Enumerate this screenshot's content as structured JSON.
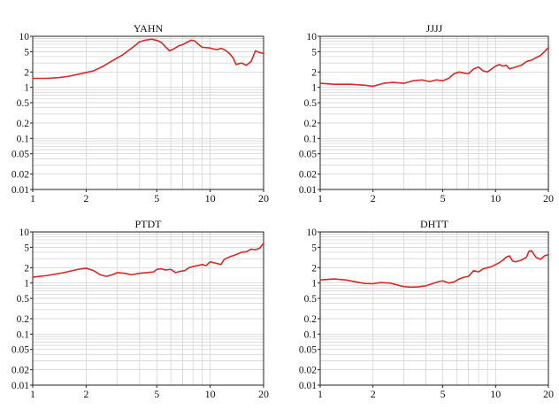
{
  "chart_data": [
    {
      "type": "line",
      "title": "YAHN",
      "xlabel": "",
      "ylabel": "",
      "xscale": "log",
      "yscale": "log",
      "xlim": [
        1,
        20
      ],
      "ylim": [
        0.01,
        10
      ],
      "xticks": [
        1,
        2,
        5,
        10,
        20
      ],
      "xtick_labels": [
        "1",
        "2",
        "5",
        "10",
        "20"
      ],
      "yticks": [
        0.01,
        0.02,
        0.05,
        0.1,
        0.2,
        0.5,
        1,
        2,
        5,
        10
      ],
      "ytick_labels": [
        "0.01",
        "0.02",
        "0.05",
        "0.1",
        "0.2",
        "0.5",
        "1",
        "2",
        "5",
        "10"
      ],
      "grid": true,
      "color": "#d42a2a",
      "x": [
        1.0,
        1.2,
        1.4,
        1.6,
        1.8,
        2.0,
        2.2,
        2.5,
        2.8,
        3.2,
        3.6,
        4.0,
        4.3,
        4.7,
        5.0,
        5.3,
        5.6,
        5.9,
        6.2,
        6.6,
        7.0,
        7.4,
        7.8,
        8.2,
        8.6,
        9.0,
        9.5,
        10.0,
        10.5,
        11.0,
        11.5,
        12.0,
        12.5,
        13.0,
        13.5,
        14.0,
        15.0,
        16.0,
        17.0,
        18.0,
        19.0,
        20.0
      ],
      "y": [
        1.5,
        1.5,
        1.55,
        1.65,
        1.8,
        1.95,
        2.1,
        2.6,
        3.3,
        4.3,
        5.8,
        7.8,
        8.4,
        8.8,
        8.3,
        7.6,
        6.2,
        5.2,
        5.6,
        6.4,
        6.9,
        7.6,
        8.4,
        8.1,
        6.9,
        6.1,
        6.0,
        5.9,
        5.6,
        5.5,
        5.8,
        5.5,
        5.0,
        4.4,
        3.7,
        2.8,
        3.0,
        2.7,
        3.2,
        5.2,
        4.8,
        4.6
      ]
    },
    {
      "type": "line",
      "title": "JJJJ",
      "xlabel": "",
      "ylabel": "",
      "xscale": "log",
      "yscale": "log",
      "xlim": [
        1,
        20
      ],
      "ylim": [
        0.01,
        10
      ],
      "xticks": [
        1,
        2,
        5,
        10,
        20
      ],
      "xtick_labels": [
        "1",
        "2",
        "5",
        "10",
        "20"
      ],
      "yticks": [
        0.01,
        0.02,
        0.05,
        0.1,
        0.2,
        0.5,
        1,
        2,
        5,
        10
      ],
      "ytick_labels": [
        "0.01",
        "0.02",
        "0.05",
        "0.1",
        "0.2",
        "0.5",
        "1",
        "2",
        "5",
        "10"
      ],
      "grid": true,
      "color": "#d42a2a",
      "x": [
        1.0,
        1.2,
        1.5,
        1.8,
        2.0,
        2.3,
        2.6,
        3.0,
        3.4,
        3.8,
        4.2,
        4.6,
        5.0,
        5.4,
        5.8,
        6.2,
        6.6,
        7.0,
        7.5,
        8.0,
        8.5,
        9.0,
        9.5,
        10.0,
        10.5,
        11.0,
        11.5,
        12.0,
        12.5,
        13.0,
        14.0,
        15.0,
        16.0,
        17.0,
        18.0,
        19.0,
        20.0
      ],
      "y": [
        1.2,
        1.15,
        1.15,
        1.1,
        1.05,
        1.2,
        1.25,
        1.2,
        1.35,
        1.4,
        1.3,
        1.4,
        1.35,
        1.5,
        1.85,
        2.0,
        1.9,
        1.85,
        2.3,
        2.5,
        2.1,
        2.0,
        2.3,
        2.6,
        2.8,
        2.6,
        2.7,
        2.3,
        2.4,
        2.5,
        2.7,
        3.2,
        3.4,
        3.8,
        4.2,
        5.0,
        6.0
      ]
    },
    {
      "type": "line",
      "title": "PTDT",
      "xlabel": "",
      "ylabel": "",
      "xscale": "log",
      "yscale": "log",
      "xlim": [
        1,
        20
      ],
      "ylim": [
        0.01,
        10
      ],
      "xticks": [
        1,
        2,
        5,
        10,
        20
      ],
      "xtick_labels": [
        "1",
        "2",
        "5",
        "10",
        "20"
      ],
      "yticks": [
        0.01,
        0.02,
        0.05,
        0.1,
        0.2,
        0.5,
        1,
        2,
        5,
        10
      ],
      "ytick_labels": [
        "0.01",
        "0.02",
        "0.05",
        "0.1",
        "0.2",
        "0.5",
        "1",
        "2",
        "5",
        "10"
      ],
      "grid": true,
      "color": "#d42a2a",
      "x": [
        1.0,
        1.2,
        1.5,
        1.8,
        2.0,
        2.2,
        2.4,
        2.6,
        2.8,
        3.0,
        3.3,
        3.6,
        4.0,
        4.4,
        4.8,
        5.0,
        5.3,
        5.6,
        6.0,
        6.4,
        6.8,
        7.2,
        7.6,
        8.0,
        8.5,
        9.0,
        9.5,
        10.0,
        10.5,
        11.0,
        11.5,
        12.0,
        12.5,
        13.0,
        14.0,
        15.0,
        16.0,
        17.0,
        18.0,
        19.0,
        20.0
      ],
      "y": [
        1.3,
        1.4,
        1.6,
        1.85,
        1.95,
        1.75,
        1.45,
        1.35,
        1.45,
        1.6,
        1.55,
        1.45,
        1.55,
        1.6,
        1.65,
        1.85,
        1.9,
        1.8,
        1.85,
        1.6,
        1.7,
        1.75,
        2.0,
        2.1,
        2.2,
        2.3,
        2.2,
        2.6,
        2.5,
        2.4,
        2.3,
        2.9,
        3.1,
        3.3,
        3.6,
        4.0,
        4.1,
        4.6,
        4.5,
        4.8,
        6.0
      ]
    },
    {
      "type": "line",
      "title": "DHTT",
      "xlabel": "",
      "ylabel": "",
      "xscale": "log",
      "yscale": "log",
      "xlim": [
        1,
        20
      ],
      "ylim": [
        0.01,
        10
      ],
      "xticks": [
        1,
        2,
        5,
        10,
        20
      ],
      "xtick_labels": [
        "1",
        "2",
        "5",
        "10",
        "20"
      ],
      "yticks": [
        0.01,
        0.02,
        0.05,
        0.1,
        0.2,
        0.5,
        1,
        2,
        5,
        10
      ],
      "ytick_labels": [
        "0.01",
        "0.02",
        "0.05",
        "0.1",
        "0.2",
        "0.5",
        "1",
        "2",
        "5",
        "10"
      ],
      "grid": true,
      "color": "#d42a2a",
      "x": [
        1.0,
        1.2,
        1.4,
        1.6,
        1.8,
        2.0,
        2.2,
        2.5,
        2.8,
        3.0,
        3.3,
        3.6,
        4.0,
        4.4,
        4.8,
        5.0,
        5.4,
        5.8,
        6.2,
        6.6,
        7.0,
        7.5,
        8.0,
        8.5,
        9.0,
        9.5,
        10.0,
        10.5,
        11.0,
        11.5,
        12.0,
        12.5,
        13.0,
        14.0,
        15.0,
        15.5,
        16.0,
        17.0,
        18.0,
        19.0,
        20.0
      ],
      "y": [
        1.15,
        1.2,
        1.15,
        1.05,
        0.98,
        0.97,
        1.02,
        1.0,
        0.9,
        0.85,
        0.83,
        0.84,
        0.88,
        0.98,
        1.08,
        1.1,
        1.0,
        1.05,
        1.2,
        1.3,
        1.35,
        1.75,
        1.65,
        1.9,
        2.0,
        2.1,
        2.3,
        2.5,
        2.8,
        3.2,
        3.4,
        2.7,
        2.6,
        2.8,
        3.2,
        4.2,
        4.3,
        3.2,
        2.9,
        3.4,
        3.6
      ]
    }
  ]
}
